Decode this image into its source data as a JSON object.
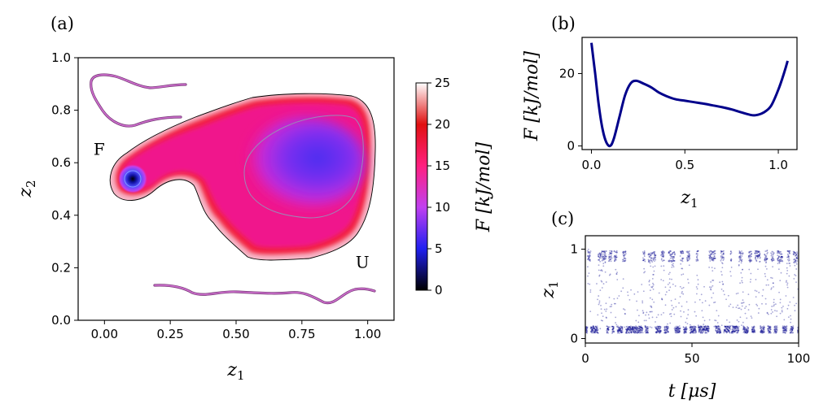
{
  "chart_data": [
    {
      "id": "a",
      "type": "heatmap",
      "panel_label": "(a)",
      "xlabel": "z",
      "xlabel_sub": "1",
      "ylabel": "z",
      "ylabel_sub": "2",
      "xlim": [
        -0.1,
        1.1
      ],
      "ylim": [
        0.0,
        1.0
      ],
      "xticks": [
        0.0,
        0.25,
        0.5,
        0.75,
        1.0
      ],
      "xtick_labels": [
        "0.00",
        "0.25",
        "0.50",
        "0.75",
        "1.00"
      ],
      "yticks": [
        0.0,
        0.2,
        0.4,
        0.6,
        0.8,
        1.0
      ],
      "ytick_labels": [
        "0.0",
        "0.2",
        "0.4",
        "0.6",
        "0.8",
        "1.0"
      ],
      "annotations": [
        {
          "text": "F",
          "x": -0.02,
          "y": 0.63
        },
        {
          "text": "U",
          "x": 0.98,
          "y": 0.2
        }
      ],
      "minima": [
        {
          "x": 0.1,
          "y": 0.53,
          "value": 0
        },
        {
          "x": 0.87,
          "y": 0.62,
          "value": 8
        }
      ],
      "colorbar": {
        "label": "F [kJ/mol]",
        "range": [
          0,
          25
        ],
        "ticks": [
          0,
          5,
          10,
          15,
          20,
          25
        ],
        "tick_labels": [
          "0",
          "5",
          "10",
          "15",
          "20",
          "25"
        ],
        "colors": [
          "#000000",
          "#2020f0",
          "#c040f0",
          "#ff2080",
          "#e01010",
          "#ffffff"
        ]
      },
      "grid": false
    },
    {
      "id": "b",
      "type": "line",
      "panel_label": "(b)",
      "xlabel": "z",
      "xlabel_sub": "1",
      "ylabel": "F [kJ/mol]",
      "xlim": [
        -0.05,
        1.1
      ],
      "ylim": [
        -1,
        30
      ],
      "xticks": [
        0.0,
        0.5,
        1.0
      ],
      "xtick_labels": [
        "0.0",
        "0.5",
        "1.0"
      ],
      "yticks": [
        0,
        20
      ],
      "ytick_labels": [
        "0",
        "20"
      ],
      "x": [
        0.0,
        0.02,
        0.04,
        0.06,
        0.08,
        0.1,
        0.12,
        0.15,
        0.18,
        0.21,
        0.24,
        0.28,
        0.32,
        0.36,
        0.4,
        0.45,
        0.5,
        0.55,
        0.6,
        0.65,
        0.7,
        0.75,
        0.8,
        0.85,
        0.88,
        0.92,
        0.96,
        1.0,
        1.03,
        1.05
      ],
      "series": [
        {
          "values": [
            28.5,
            20.0,
            11.0,
            4.5,
            1.0,
            0.0,
            2.0,
            8.0,
            14.0,
            17.3,
            18.0,
            17.2,
            16.2,
            14.8,
            13.8,
            12.9,
            12.5,
            12.1,
            11.7,
            11.2,
            10.7,
            10.1,
            9.3,
            8.6,
            8.5,
            9.2,
            11.0,
            15.5,
            20.0,
            23.5
          ],
          "color": "#00008b"
        }
      ],
      "grid": false
    },
    {
      "id": "c",
      "type": "scatter",
      "panel_label": "(c)",
      "xlabel": "t [μs]",
      "ylabel": "z",
      "ylabel_sub": "1",
      "xlim": [
        0,
        100
      ],
      "ylim": [
        -0.05,
        1.15
      ],
      "xticks": [
        0,
        50,
        100
      ],
      "xtick_labels": [
        "0",
        "50",
        "100"
      ],
      "yticks": [
        0,
        1
      ],
      "ytick_labels": [
        "0",
        "1"
      ],
      "states": {
        "folded_z1": 0.1,
        "unfolded_z1": 0.98
      },
      "unfolded_intervals": [
        [
          1,
          2.5
        ],
        [
          6,
          10
        ],
        [
          11,
          12.5
        ],
        [
          13.5,
          15
        ],
        [
          17.5,
          19
        ],
        [
          27,
          28
        ],
        [
          29.5,
          33
        ],
        [
          35.5,
          37
        ],
        [
          39,
          42
        ],
        [
          44.5,
          46
        ],
        [
          47.5,
          49
        ],
        [
          52,
          53
        ],
        [
          58,
          61
        ],
        [
          63.5,
          65
        ],
        [
          68,
          68.6
        ],
        [
          72,
          74
        ],
        [
          76.5,
          78
        ],
        [
          79.5,
          82
        ],
        [
          84,
          85.5
        ],
        [
          87,
          88.5
        ],
        [
          90,
          92.5
        ],
        [
          94.5,
          96
        ],
        [
          97.5,
          99.5
        ]
      ],
      "color": "#00008b",
      "grid": false
    }
  ]
}
